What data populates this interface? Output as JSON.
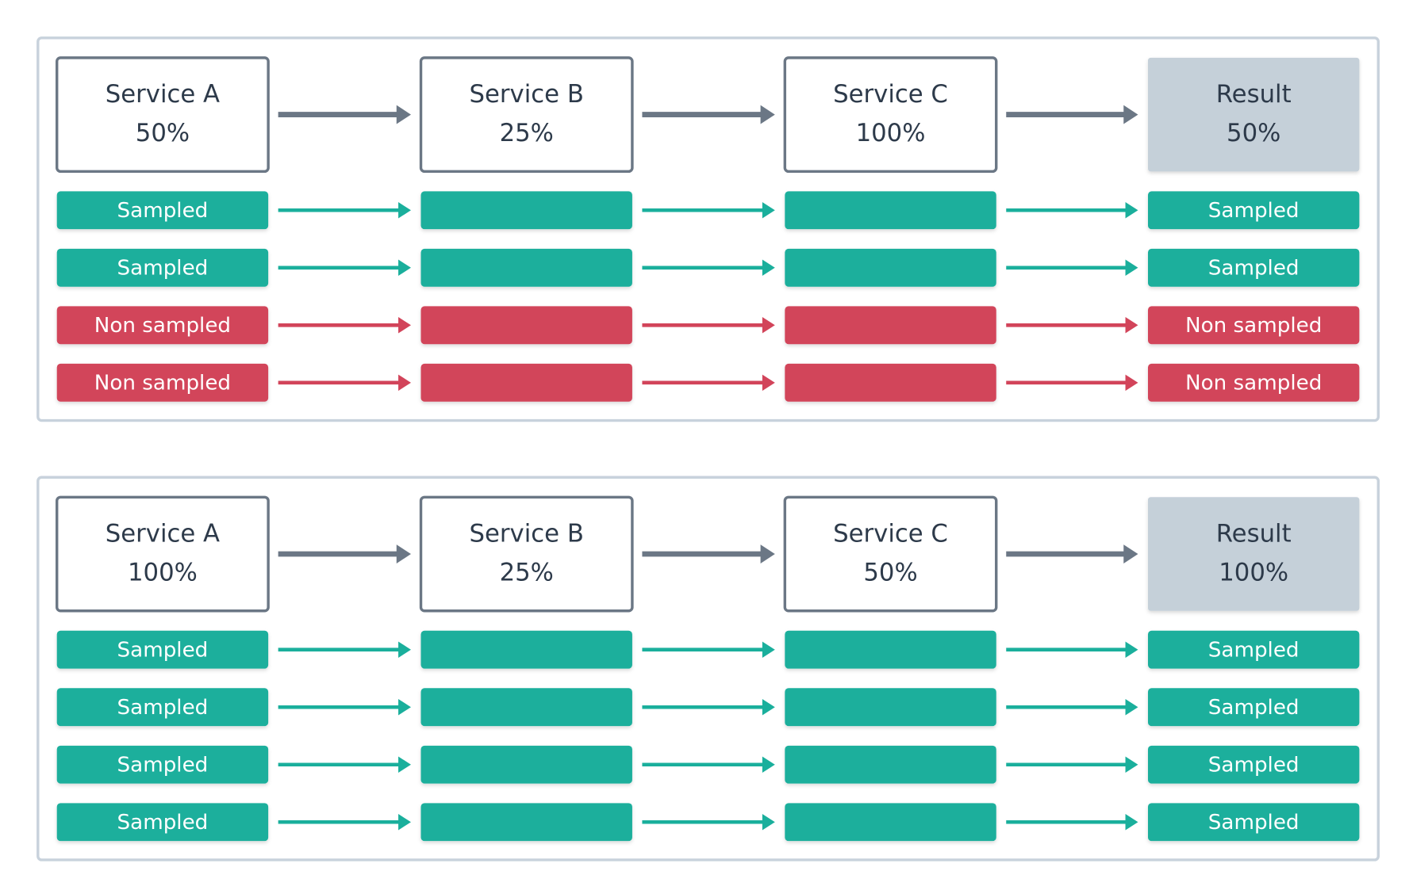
{
  "panels": [
    {
      "headers": [
        {
          "name": "Service A",
          "rate": "50%"
        },
        {
          "name": "Service B",
          "rate": "25%"
        },
        {
          "name": "Service C",
          "rate": "100%"
        },
        {
          "name": "Result",
          "rate": "50%"
        }
      ],
      "rows": [
        {
          "color": "#1aaf9c",
          "labels": [
            "Sampled",
            "Sampled"
          ]
        },
        {
          "color": "#1aaf9c",
          "labels": [
            "Sampled",
            "Sampled"
          ]
        },
        {
          "color": "#d2445a",
          "labels": [
            "Non sampled",
            "Non sampled"
          ]
        },
        {
          "color": "#d2445a",
          "labels": [
            "Non sampled",
            "Non sampled"
          ]
        }
      ]
    },
    {
      "headers": [
        {
          "name": "Service A",
          "rate": "100%"
        },
        {
          "name": "Service B",
          "rate": "25%"
        },
        {
          "name": "Service C",
          "rate": "50%"
        },
        {
          "name": "Result",
          "rate": "100%"
        }
      ],
      "rows": [
        {
          "color": "#1aaf9c",
          "labels": [
            "Sampled",
            "Sampled"
          ]
        },
        {
          "color": "#1aaf9c",
          "labels": [
            "Sampled",
            "Sampled"
          ]
        },
        {
          "color": "#1aaf9c",
          "labels": [
            "Sampled",
            "Sampled"
          ]
        },
        {
          "color": "#1aaf9c",
          "labels": [
            "Sampled",
            "Sampled"
          ]
        }
      ]
    }
  ]
}
